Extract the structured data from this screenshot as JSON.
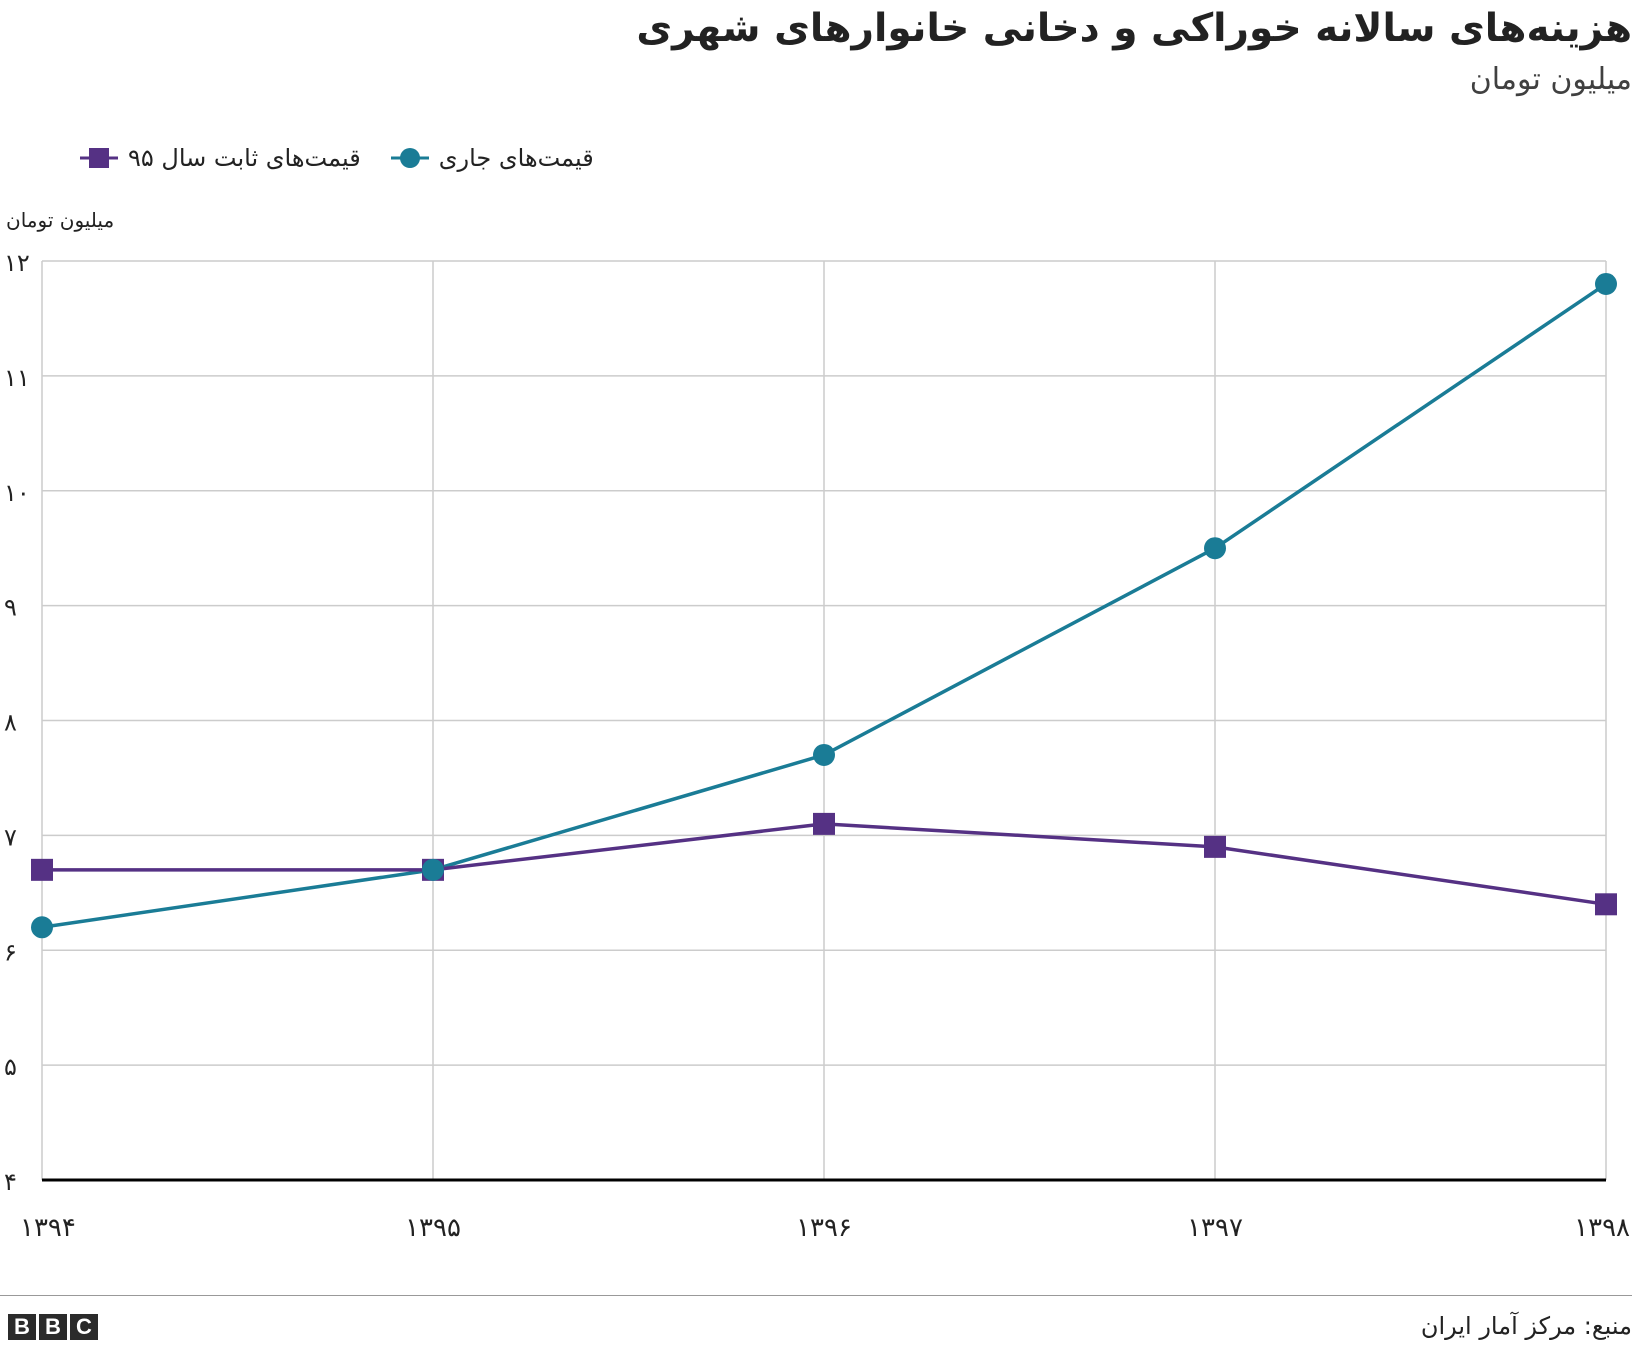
{
  "title": "هزینه‌های سالانه خوراکی و دخانی خانوارهای شهری",
  "subtitle": "میلیون تومان",
  "legend": {
    "current": "قیمت‌های جاری",
    "constant": "قیمت‌های ثابت سال ۹۵"
  },
  "source": "منبع: مرکز آمار ایران",
  "logo": [
    "B",
    "B",
    "C"
  ],
  "colors": {
    "current": "#1a7c96",
    "constant": "#553184",
    "grid": "#cccccc",
    "axis": "#000000"
  },
  "chart_data": {
    "type": "line",
    "title": "هزینه‌های سالانه خوراکی و دخانی خانوارهای شهری",
    "subtitle": "میلیون تومان",
    "ylabel": "میلیون تومان",
    "xlabel": "",
    "categories": [
      "۱۳۹۴",
      "۱۳۹۵",
      "۱۳۹۶",
      "۱۳۹۷",
      "۱۳۹۸"
    ],
    "ylim": [
      4,
      12
    ],
    "yticks": [
      4,
      5,
      6,
      7,
      8,
      9,
      10,
      11,
      12
    ],
    "ytick_labels": [
      "۴",
      "۵",
      "۶",
      "۷",
      "۸",
      "۹",
      "۱۰",
      "۱۱",
      "۱۲"
    ],
    "grid": true,
    "legend_position": "top-left",
    "series": [
      {
        "name": "قیمت‌های جاری",
        "marker": "circle",
        "color": "#1a7c96",
        "values": [
          6.2,
          6.7,
          7.7,
          9.5,
          11.8
        ]
      },
      {
        "name": "قیمت‌های ثابت سال ۹۵",
        "marker": "square",
        "color": "#553184",
        "values": [
          6.7,
          6.7,
          7.1,
          6.9,
          6.4
        ]
      }
    ]
  }
}
